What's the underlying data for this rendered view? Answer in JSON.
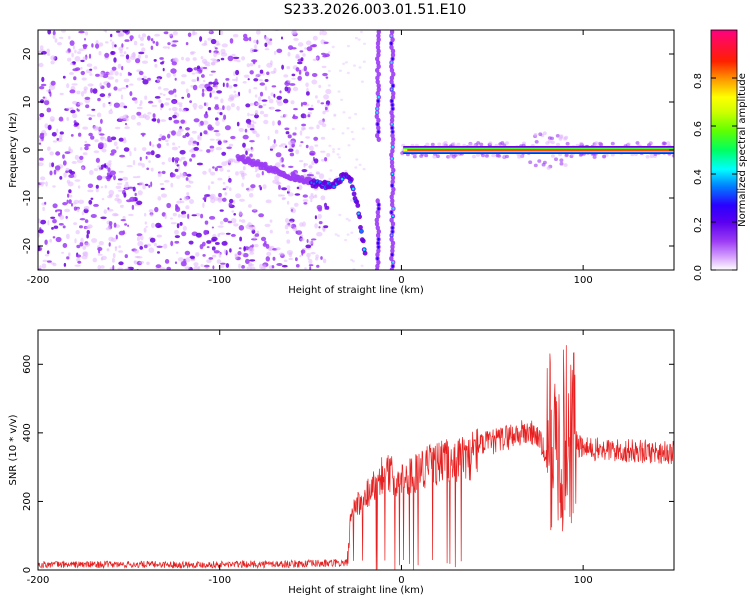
{
  "title": "S233.2026.003.01.51.E10",
  "colors": {
    "trace": "#e62020",
    "spec_scale": [
      "#ffffff",
      "#e2b7ff",
      "#9c3cf5",
      "#6a00e0",
      "#2a00ff",
      "#0080ff",
      "#00ffff",
      "#00ff60",
      "#7fff00",
      "#ffff00",
      "#ff8000",
      "#ff0000",
      "#ff0080"
    ]
  },
  "chart_data": [
    {
      "type": "heatmap",
      "xlabel": "Height of straight line (km)",
      "ylabel": "Frequency (Hz)",
      "xlim": [
        -200,
        150
      ],
      "ylim": [
        -25,
        25
      ],
      "xticks": [
        -200,
        -100,
        0,
        100
      ],
      "yticks": [
        -20,
        -10,
        0,
        10,
        20
      ],
      "colorbar": {
        "label": "Normalized spectral amplitude",
        "range": [
          0,
          1
        ],
        "ticks": [
          0.0,
          0.2,
          0.4,
          0.6,
          0.8
        ]
      },
      "features": [
        {
          "name": "noise",
          "x_range": [
            -200,
            -40
          ]
        },
        {
          "name": "descending track",
          "x": [
            -90,
            -75,
            -60,
            -48,
            -38,
            -32,
            -28,
            -24,
            -20
          ],
          "y": [
            -1.5,
            -3.5,
            -5.5,
            -7,
            -7.5,
            -5.5,
            -6,
            -12,
            -22
          ]
        },
        {
          "name": "vertical streak A",
          "x": -13,
          "y_range": [
            -25,
            25
          ]
        },
        {
          "name": "vertical streak B",
          "x": -5,
          "y_range": [
            -25,
            25
          ]
        },
        {
          "name": "carrier line",
          "x_range": [
            0,
            150
          ],
          "y": 0
        }
      ]
    },
    {
      "type": "line",
      "xlabel": "Height of straight line (km)",
      "ylabel": "SNR (10 * v/v)",
      "xlim": [
        -200,
        150
      ],
      "ylim": [
        0,
        700
      ],
      "xticks": [
        -200,
        -100,
        0,
        100
      ],
      "yticks": [
        0,
        200,
        400,
        600
      ],
      "series": [
        {
          "name": "SNR",
          "x": [
            -200,
            -150,
            -100,
            -60,
            -30,
            -28,
            -26,
            -15,
            -10,
            0,
            5,
            10,
            15,
            20,
            30,
            38,
            40,
            42,
            50,
            60,
            70,
            75,
            80,
            82,
            85,
            88,
            90,
            92,
            95,
            100,
            120,
            150
          ],
          "y": [
            20,
            20,
            20,
            22,
            25,
            140,
            190,
            260,
            300,
            280,
            290,
            310,
            320,
            330,
            340,
            345,
            370,
            370,
            380,
            400,
            410,
            400,
            330,
            350,
            300,
            330,
            350,
            370,
            380,
            360,
            355,
            350
          ]
        }
      ]
    }
  ]
}
